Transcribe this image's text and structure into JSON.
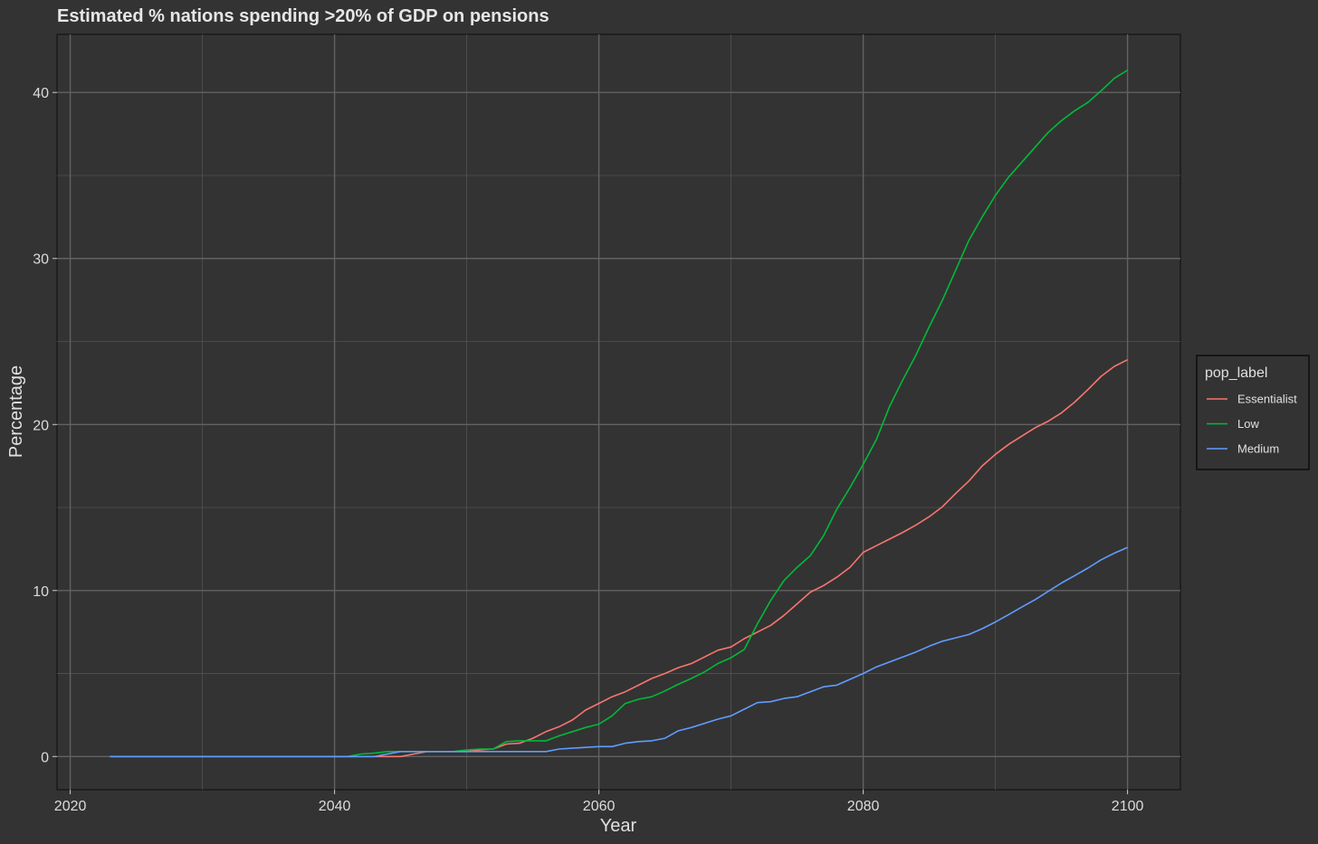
{
  "chart_data": {
    "type": "line",
    "title": "Estimated % nations spending >20% of GDP on pensions",
    "xlabel": "Year",
    "ylabel": "Percentage",
    "xlim": [
      2019,
      2104
    ],
    "ylim": [
      -2,
      43.5
    ],
    "x_ticks": [
      2020,
      2040,
      2060,
      2080,
      2100
    ],
    "x_minor_ticks": [
      2030,
      2050,
      2070,
      2090
    ],
    "y_ticks": [
      0,
      10,
      20,
      30,
      40
    ],
    "y_minor_ticks": [
      5,
      15,
      25,
      35
    ],
    "x_tick_labels": [
      "2020",
      "2040",
      "2060",
      "2080",
      "2100"
    ],
    "y_tick_labels": [
      "0",
      "10",
      "20",
      "30",
      "40"
    ],
    "grid": true,
    "legend": {
      "title": "pop_label",
      "position": "right"
    },
    "series": [
      {
        "name": "Essentialist",
        "color": "#f8766d",
        "points": [
          [
            2023,
            0
          ],
          [
            2044,
            0
          ],
          [
            2045,
            0
          ],
          [
            2046,
            0.15
          ],
          [
            2047,
            0.3
          ],
          [
            2050,
            0.3
          ],
          [
            2051,
            0.4
          ],
          [
            2052,
            0.45
          ],
          [
            2053,
            0.75
          ],
          [
            2054,
            0.8
          ],
          [
            2055,
            1.1
          ],
          [
            2056,
            1.5
          ],
          [
            2057,
            1.8
          ],
          [
            2058,
            2.2
          ],
          [
            2059,
            2.8
          ],
          [
            2060,
            3.2
          ],
          [
            2061,
            3.6
          ],
          [
            2062,
            3.9
          ],
          [
            2063,
            4.3
          ],
          [
            2064,
            4.7
          ],
          [
            2065,
            5.0
          ],
          [
            2066,
            5.35
          ],
          [
            2067,
            5.6
          ],
          [
            2068,
            6.0
          ],
          [
            2069,
            6.4
          ],
          [
            2070,
            6.6
          ],
          [
            2071,
            7.1
          ],
          [
            2072,
            7.5
          ],
          [
            2073,
            7.9
          ],
          [
            2074,
            8.5
          ],
          [
            2075,
            9.2
          ],
          [
            2076,
            9.9
          ],
          [
            2077,
            10.3
          ],
          [
            2078,
            10.8
          ],
          [
            2079,
            11.4
          ],
          [
            2080,
            12.3
          ],
          [
            2081,
            12.7
          ],
          [
            2082,
            13.1
          ],
          [
            2083,
            13.5
          ],
          [
            2084,
            13.95
          ],
          [
            2085,
            14.45
          ],
          [
            2086,
            15.05
          ],
          [
            2087,
            15.85
          ],
          [
            2088,
            16.6
          ],
          [
            2089,
            17.5
          ],
          [
            2090,
            18.2
          ],
          [
            2091,
            18.8
          ],
          [
            2092,
            19.3
          ],
          [
            2093,
            19.8
          ],
          [
            2094,
            20.2
          ],
          [
            2095,
            20.7
          ],
          [
            2096,
            21.35
          ],
          [
            2097,
            22.1
          ],
          [
            2098,
            22.9
          ],
          [
            2099,
            23.5
          ],
          [
            2100,
            23.9
          ]
        ]
      },
      {
        "name": "Low",
        "color": "#00ba38",
        "points": [
          [
            2023,
            0
          ],
          [
            2041,
            0
          ],
          [
            2042,
            0.15
          ],
          [
            2043,
            0.2
          ],
          [
            2044,
            0.3
          ],
          [
            2045,
            0.3
          ],
          [
            2049,
            0.3
          ],
          [
            2050,
            0.4
          ],
          [
            2051,
            0.45
          ],
          [
            2052,
            0.45
          ],
          [
            2053,
            0.9
          ],
          [
            2054,
            0.95
          ],
          [
            2056,
            0.95
          ],
          [
            2057,
            1.25
          ],
          [
            2058,
            1.5
          ],
          [
            2059,
            1.75
          ],
          [
            2060,
            1.95
          ],
          [
            2061,
            2.45
          ],
          [
            2062,
            3.2
          ],
          [
            2063,
            3.45
          ],
          [
            2064,
            3.6
          ],
          [
            2065,
            3.95
          ],
          [
            2066,
            4.35
          ],
          [
            2067,
            4.7
          ],
          [
            2068,
            5.1
          ],
          [
            2069,
            5.6
          ],
          [
            2070,
            5.95
          ],
          [
            2071,
            6.45
          ],
          [
            2072,
            8.0
          ],
          [
            2073,
            9.4
          ],
          [
            2074,
            10.6
          ],
          [
            2075,
            11.4
          ],
          [
            2076,
            12.1
          ],
          [
            2077,
            13.3
          ],
          [
            2078,
            14.9
          ],
          [
            2079,
            16.2
          ],
          [
            2080,
            17.6
          ],
          [
            2081,
            19.1
          ],
          [
            2082,
            21.1
          ],
          [
            2083,
            22.7
          ],
          [
            2084,
            24.2
          ],
          [
            2085,
            25.9
          ],
          [
            2086,
            27.5
          ],
          [
            2087,
            29.3
          ],
          [
            2088,
            31.1
          ],
          [
            2089,
            32.5
          ],
          [
            2090,
            33.8
          ],
          [
            2091,
            34.9
          ],
          [
            2092,
            35.8
          ],
          [
            2093,
            36.7
          ],
          [
            2094,
            37.6
          ],
          [
            2095,
            38.3
          ],
          [
            2096,
            38.9
          ],
          [
            2097,
            39.4
          ],
          [
            2098,
            40.1
          ],
          [
            2099,
            40.85
          ],
          [
            2100,
            41.35
          ]
        ]
      },
      {
        "name": "Medium",
        "color": "#619cff",
        "points": [
          [
            2023,
            0
          ],
          [
            2043,
            0
          ],
          [
            2044,
            0.15
          ],
          [
            2045,
            0.3
          ],
          [
            2055,
            0.3
          ],
          [
            2056,
            0.3
          ],
          [
            2057,
            0.45
          ],
          [
            2058,
            0.5
          ],
          [
            2059,
            0.55
          ],
          [
            2060,
            0.6
          ],
          [
            2061,
            0.6
          ],
          [
            2062,
            0.8
          ],
          [
            2063,
            0.9
          ],
          [
            2064,
            0.95
          ],
          [
            2065,
            1.1
          ],
          [
            2066,
            1.55
          ],
          [
            2067,
            1.75
          ],
          [
            2068,
            2.0
          ],
          [
            2069,
            2.25
          ],
          [
            2070,
            2.45
          ],
          [
            2071,
            2.85
          ],
          [
            2072,
            3.25
          ],
          [
            2073,
            3.3
          ],
          [
            2074,
            3.5
          ],
          [
            2075,
            3.6
          ],
          [
            2076,
            3.9
          ],
          [
            2077,
            4.2
          ],
          [
            2078,
            4.3
          ],
          [
            2079,
            4.65
          ],
          [
            2080,
            5.0
          ],
          [
            2081,
            5.4
          ],
          [
            2082,
            5.7
          ],
          [
            2083,
            6.0
          ],
          [
            2084,
            6.3
          ],
          [
            2085,
            6.65
          ],
          [
            2086,
            6.95
          ],
          [
            2087,
            7.15
          ],
          [
            2088,
            7.35
          ],
          [
            2089,
            7.7
          ],
          [
            2090,
            8.1
          ],
          [
            2091,
            8.55
          ],
          [
            2092,
            9.0
          ],
          [
            2093,
            9.45
          ],
          [
            2094,
            9.95
          ],
          [
            2095,
            10.45
          ],
          [
            2096,
            10.9
          ],
          [
            2097,
            11.35
          ],
          [
            2098,
            11.85
          ],
          [
            2099,
            12.25
          ],
          [
            2100,
            12.6
          ]
        ]
      }
    ]
  }
}
